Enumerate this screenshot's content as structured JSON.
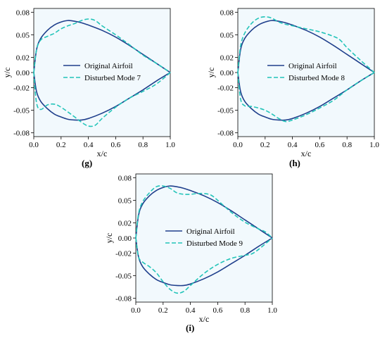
{
  "colors": {
    "original": "#1f3f8c",
    "disturbed": "#23c4b9",
    "plot_bg": "#f2f9fd"
  },
  "chart_data": [
    {
      "type": "line",
      "panel_label": "(g)",
      "xlabel": "x/c",
      "ylabel": "y/c",
      "xlim": [
        0.0,
        1.0
      ],
      "ylim": [
        -0.085,
        0.085
      ],
      "xticks": [
        "0.0",
        "0.2",
        "0.4",
        "0.6",
        "0.8",
        "1.0"
      ],
      "yticks": [
        "0.08",
        "0.05",
        "0.02",
        "0.00",
        "-0.02",
        "-0.05",
        "-0.08"
      ],
      "legend_position": "center",
      "series": [
        {
          "name": "Original Airfoil",
          "style": "solid",
          "upper": [
            [
              0.0,
              0.0
            ],
            [
              0.02,
              0.03
            ],
            [
              0.05,
              0.045
            ],
            [
              0.1,
              0.056
            ],
            [
              0.15,
              0.063
            ],
            [
              0.2,
              0.067
            ],
            [
              0.25,
              0.069
            ],
            [
              0.3,
              0.068
            ],
            [
              0.35,
              0.066
            ],
            [
              0.4,
              0.063
            ],
            [
              0.5,
              0.056
            ],
            [
              0.6,
              0.047
            ],
            [
              0.7,
              0.036
            ],
            [
              0.8,
              0.024
            ],
            [
              0.9,
              0.012
            ],
            [
              1.0,
              0.0
            ]
          ],
          "lower": [
            [
              0.0,
              0.0
            ],
            [
              0.02,
              -0.025
            ],
            [
              0.05,
              -0.038
            ],
            [
              0.1,
              -0.048
            ],
            [
              0.15,
              -0.055
            ],
            [
              0.2,
              -0.059
            ],
            [
              0.25,
              -0.062
            ],
            [
              0.3,
              -0.063
            ],
            [
              0.35,
              -0.063
            ],
            [
              0.4,
              -0.061
            ],
            [
              0.5,
              -0.054
            ],
            [
              0.6,
              -0.045
            ],
            [
              0.7,
              -0.034
            ],
            [
              0.8,
              -0.023
            ],
            [
              0.9,
              -0.011
            ],
            [
              1.0,
              0.0
            ]
          ]
        },
        {
          "name": "Disturbed Mode 7",
          "style": "dashed",
          "upper": [
            [
              0.0,
              0.0
            ],
            [
              0.02,
              0.03
            ],
            [
              0.05,
              0.043
            ],
            [
              0.1,
              0.048
            ],
            [
              0.15,
              0.052
            ],
            [
              0.2,
              0.058
            ],
            [
              0.25,
              0.062
            ],
            [
              0.3,
              0.065
            ],
            [
              0.35,
              0.069
            ],
            [
              0.4,
              0.071
            ],
            [
              0.45,
              0.069
            ],
            [
              0.5,
              0.062
            ],
            [
              0.6,
              0.05
            ],
            [
              0.7,
              0.037
            ],
            [
              0.8,
              0.023
            ],
            [
              0.9,
              0.012
            ],
            [
              1.0,
              0.0
            ]
          ],
          "lower": [
            [
              0.0,
              0.0
            ],
            [
              0.02,
              -0.04
            ],
            [
              0.05,
              -0.049
            ],
            [
              0.1,
              -0.043
            ],
            [
              0.15,
              -0.042
            ],
            [
              0.2,
              -0.046
            ],
            [
              0.3,
              -0.059
            ],
            [
              0.35,
              -0.066
            ],
            [
              0.4,
              -0.071
            ],
            [
              0.45,
              -0.07
            ],
            [
              0.5,
              -0.061
            ],
            [
              0.6,
              -0.046
            ],
            [
              0.7,
              -0.034
            ],
            [
              0.8,
              -0.025
            ],
            [
              0.9,
              -0.015
            ],
            [
              1.0,
              0.0
            ]
          ]
        }
      ]
    },
    {
      "type": "line",
      "panel_label": "(h)",
      "xlabel": "x/c",
      "ylabel": "y/c",
      "xlim": [
        0.0,
        1.0
      ],
      "ylim": [
        -0.085,
        0.085
      ],
      "xticks": [
        "0.0",
        "0.2",
        "0.4",
        "0.6",
        "0.8",
        "1.0"
      ],
      "yticks": [
        "0.08",
        "0.05",
        "0.02",
        "0.00",
        "-0.02",
        "-0.05",
        "-0.08"
      ],
      "legend_position": "center",
      "series": [
        {
          "name": "Original Airfoil",
          "style": "solid",
          "upper": [
            [
              0.0,
              0.0
            ],
            [
              0.02,
              0.03
            ],
            [
              0.05,
              0.045
            ],
            [
              0.1,
              0.056
            ],
            [
              0.15,
              0.063
            ],
            [
              0.2,
              0.067
            ],
            [
              0.25,
              0.069
            ],
            [
              0.3,
              0.068
            ],
            [
              0.35,
              0.066
            ],
            [
              0.4,
              0.063
            ],
            [
              0.5,
              0.056
            ],
            [
              0.6,
              0.047
            ],
            [
              0.7,
              0.036
            ],
            [
              0.8,
              0.024
            ],
            [
              0.9,
              0.012
            ],
            [
              1.0,
              0.0
            ]
          ],
          "lower": [
            [
              0.0,
              0.0
            ],
            [
              0.02,
              -0.025
            ],
            [
              0.05,
              -0.038
            ],
            [
              0.1,
              -0.048
            ],
            [
              0.15,
              -0.055
            ],
            [
              0.2,
              -0.059
            ],
            [
              0.25,
              -0.062
            ],
            [
              0.3,
              -0.063
            ],
            [
              0.35,
              -0.063
            ],
            [
              0.4,
              -0.061
            ],
            [
              0.5,
              -0.054
            ],
            [
              0.6,
              -0.045
            ],
            [
              0.7,
              -0.034
            ],
            [
              0.8,
              -0.023
            ],
            [
              0.9,
              -0.011
            ],
            [
              1.0,
              0.0
            ]
          ]
        },
        {
          "name": "Disturbed Mode 8",
          "style": "dashed",
          "upper": [
            [
              0.0,
              0.0
            ],
            [
              0.02,
              0.035
            ],
            [
              0.05,
              0.052
            ],
            [
              0.1,
              0.065
            ],
            [
              0.15,
              0.072
            ],
            [
              0.2,
              0.074
            ],
            [
              0.25,
              0.072
            ],
            [
              0.3,
              0.067
            ],
            [
              0.35,
              0.064
            ],
            [
              0.4,
              0.062
            ],
            [
              0.5,
              0.058
            ],
            [
              0.6,
              0.054
            ],
            [
              0.7,
              0.048
            ],
            [
              0.75,
              0.043
            ],
            [
              0.8,
              0.033
            ],
            [
              0.9,
              0.016
            ],
            [
              1.0,
              0.0
            ]
          ],
          "lower": [
            [
              0.0,
              0.0
            ],
            [
              0.02,
              -0.035
            ],
            [
              0.05,
              -0.044
            ],
            [
              0.1,
              -0.045
            ],
            [
              0.15,
              -0.047
            ],
            [
              0.2,
              -0.05
            ],
            [
              0.25,
              -0.055
            ],
            [
              0.3,
              -0.061
            ],
            [
              0.35,
              -0.065
            ],
            [
              0.4,
              -0.063
            ],
            [
              0.5,
              -0.056
            ],
            [
              0.6,
              -0.047
            ],
            [
              0.7,
              -0.037
            ],
            [
              0.8,
              -0.023
            ],
            [
              0.9,
              -0.011
            ],
            [
              1.0,
              0.0
            ]
          ]
        }
      ]
    },
    {
      "type": "line",
      "panel_label": "(i)",
      "xlabel": "x/c",
      "ylabel": "y/c",
      "xlim": [
        0.0,
        1.0
      ],
      "ylim": [
        -0.085,
        0.085
      ],
      "xticks": [
        "0.0",
        "0.2",
        "0.4",
        "0.6",
        "0.8",
        "1.0"
      ],
      "yticks": [
        "0.08",
        "0.05",
        "0.02",
        "0.00",
        "-0.02",
        "-0.05",
        "-0.08"
      ],
      "legend_position": "center",
      "series": [
        {
          "name": "Original Airfoil",
          "style": "solid",
          "upper": [
            [
              0.0,
              0.0
            ],
            [
              0.02,
              0.03
            ],
            [
              0.05,
              0.045
            ],
            [
              0.1,
              0.056
            ],
            [
              0.15,
              0.063
            ],
            [
              0.2,
              0.067
            ],
            [
              0.25,
              0.069
            ],
            [
              0.3,
              0.068
            ],
            [
              0.35,
              0.066
            ],
            [
              0.4,
              0.063
            ],
            [
              0.5,
              0.056
            ],
            [
              0.6,
              0.047
            ],
            [
              0.7,
              0.036
            ],
            [
              0.8,
              0.024
            ],
            [
              0.9,
              0.012
            ],
            [
              1.0,
              0.0
            ]
          ],
          "lower": [
            [
              0.0,
              0.0
            ],
            [
              0.02,
              -0.025
            ],
            [
              0.05,
              -0.038
            ],
            [
              0.1,
              -0.048
            ],
            [
              0.15,
              -0.055
            ],
            [
              0.2,
              -0.059
            ],
            [
              0.25,
              -0.062
            ],
            [
              0.3,
              -0.063
            ],
            [
              0.35,
              -0.063
            ],
            [
              0.4,
              -0.061
            ],
            [
              0.5,
              -0.054
            ],
            [
              0.6,
              -0.045
            ],
            [
              0.7,
              -0.034
            ],
            [
              0.8,
              -0.023
            ],
            [
              0.9,
              -0.011
            ],
            [
              1.0,
              0.0
            ]
          ]
        },
        {
          "name": "Disturbed Mode 9",
          "style": "dashed",
          "upper": [
            [
              0.0,
              0.0
            ],
            [
              0.02,
              0.032
            ],
            [
              0.05,
              0.048
            ],
            [
              0.1,
              0.06
            ],
            [
              0.15,
              0.068
            ],
            [
              0.2,
              0.069
            ],
            [
              0.25,
              0.066
            ],
            [
              0.3,
              0.06
            ],
            [
              0.35,
              0.058
            ],
            [
              0.4,
              0.058
            ],
            [
              0.45,
              0.059
            ],
            [
              0.5,
              0.059
            ],
            [
              0.55,
              0.057
            ],
            [
              0.6,
              0.05
            ],
            [
              0.7,
              0.034
            ],
            [
              0.8,
              0.021
            ],
            [
              0.9,
              0.012
            ],
            [
              0.95,
              0.008
            ],
            [
              1.0,
              0.0
            ]
          ],
          "lower": [
            [
              0.0,
              0.0
            ],
            [
              0.02,
              -0.025
            ],
            [
              0.05,
              -0.032
            ],
            [
              0.1,
              -0.038
            ],
            [
              0.15,
              -0.046
            ],
            [
              0.2,
              -0.058
            ],
            [
              0.25,
              -0.068
            ],
            [
              0.3,
              -0.073
            ],
            [
              0.35,
              -0.071
            ],
            [
              0.4,
              -0.063
            ],
            [
              0.5,
              -0.047
            ],
            [
              0.6,
              -0.035
            ],
            [
              0.7,
              -0.027
            ],
            [
              0.8,
              -0.023
            ],
            [
              0.85,
              -0.021
            ],
            [
              0.9,
              -0.015
            ],
            [
              1.0,
              0.0
            ]
          ]
        }
      ]
    }
  ]
}
